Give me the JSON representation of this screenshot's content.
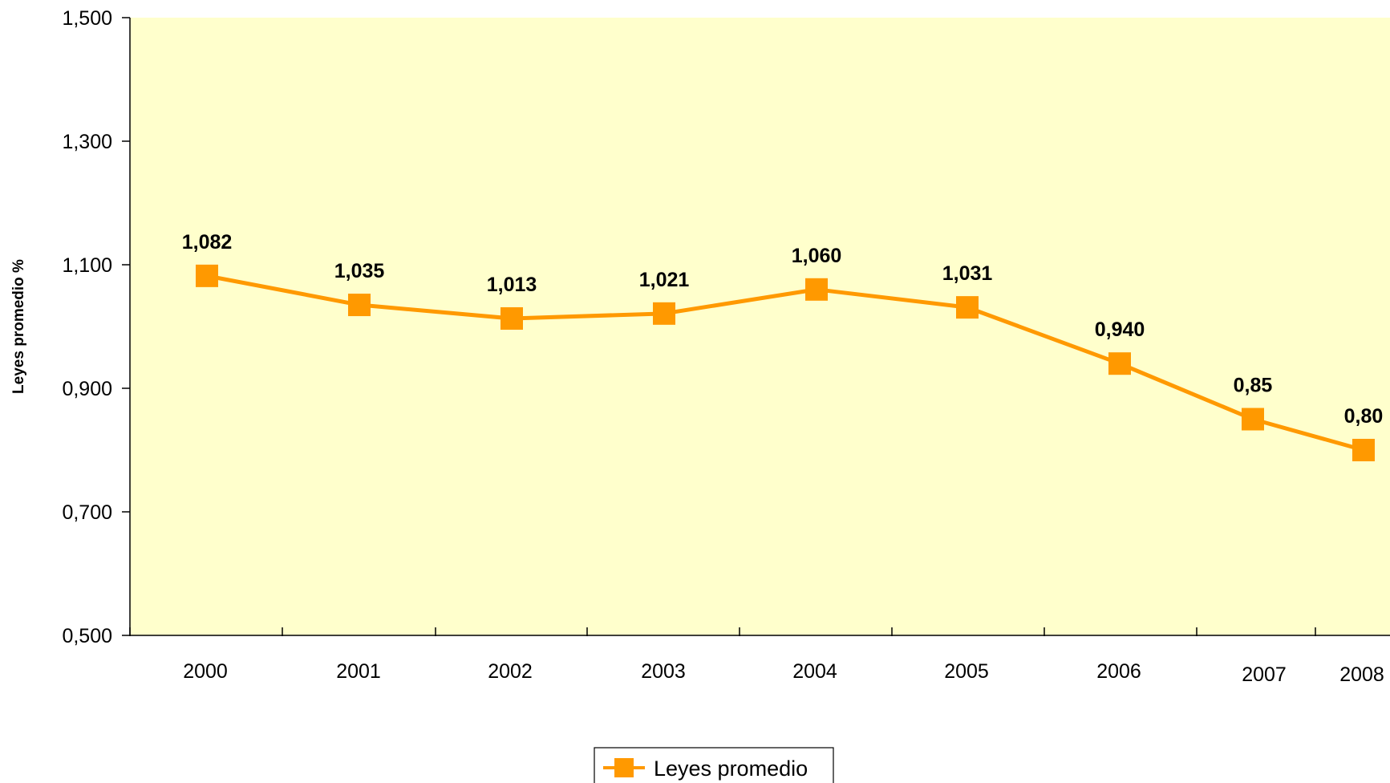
{
  "chart_data": {
    "type": "line",
    "title": "",
    "xlabel": "",
    "ylabel": "Leyes promedio %",
    "categories": [
      "2000",
      "2001",
      "2002",
      "2003",
      "2004",
      "2005",
      "2006",
      "2007",
      "2008"
    ],
    "series": [
      {
        "name": "Leyes promedio",
        "values": [
          1.082,
          1.035,
          1.013,
          1.021,
          1.06,
          1.031,
          0.94,
          0.85,
          0.8
        ],
        "labels": [
          "1,082",
          "1,035",
          "1,013",
          "1,021",
          "1,060",
          "1,031",
          "0,940",
          "0,85",
          "0,80"
        ]
      }
    ],
    "yticks": [
      0.5,
      0.7,
      0.9,
      1.1,
      1.3,
      1.5
    ],
    "ytick_labels": [
      "0,500",
      "0,700",
      "0,900",
      "1,100",
      "1,300",
      "1,500"
    ],
    "ylim": [
      0.5,
      1.5
    ],
    "grid": false,
    "legend": "bottom-center",
    "colors": {
      "plot_background": "#FFFFCC",
      "series_color": "#FF9900",
      "axis_color": "#000000"
    }
  }
}
